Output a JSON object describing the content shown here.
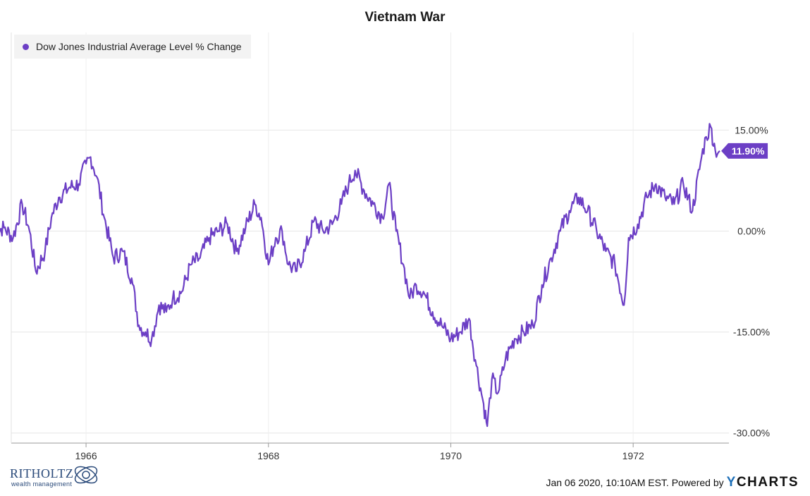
{
  "chart_data": {
    "type": "line",
    "title": "Vietnam War",
    "series": [
      {
        "name": "Dow Jones Industrial Average Level % Change",
        "color": "#6c3fc5",
        "x": [
          1965.0,
          1965.1,
          1965.2,
          1965.3,
          1965.38,
          1965.45,
          1965.55,
          1965.62,
          1965.7,
          1965.82,
          1965.92,
          1966.0,
          1966.05,
          1966.12,
          1966.2,
          1966.3,
          1966.4,
          1966.5,
          1966.58,
          1966.65,
          1966.72,
          1966.8,
          1966.88,
          1966.95,
          1967.05,
          1967.15,
          1967.25,
          1967.35,
          1967.45,
          1967.55,
          1967.65,
          1967.75,
          1967.85,
          1967.92,
          1968.0,
          1968.08,
          1968.15,
          1968.22,
          1968.3,
          1968.4,
          1968.5,
          1968.6,
          1968.7,
          1968.8,
          1968.88,
          1968.95,
          1969.05,
          1969.15,
          1969.25,
          1969.32,
          1969.4,
          1969.48,
          1969.55,
          1969.62,
          1969.7,
          1969.8,
          1969.9,
          1970.0,
          1970.1,
          1970.2,
          1970.28,
          1970.35,
          1970.4,
          1970.45,
          1970.52,
          1970.6,
          1970.7,
          1970.8,
          1970.9,
          1971.0,
          1971.1,
          1971.2,
          1971.3,
          1971.4,
          1971.5,
          1971.6,
          1971.7,
          1971.8,
          1971.9,
          1971.95,
          1972.05,
          1972.15,
          1972.25,
          1972.35,
          1972.45,
          1972.55,
          1972.65,
          1972.75,
          1972.8,
          1972.85,
          1972.9,
          1972.95
        ],
        "values": [
          0.0,
          0.5,
          -1.0,
          4.0,
          0.0,
          -6.0,
          -3.0,
          2.0,
          5.0,
          6.5,
          7.0,
          10.0,
          11.0,
          8.0,
          2.0,
          -4.0,
          -3.0,
          -7.0,
          -14.0,
          -15.0,
          -16.0,
          -11.0,
          -12.0,
          -10.0,
          -9.0,
          -5.0,
          -4.0,
          -1.0,
          0.0,
          1.0,
          -3.0,
          0.5,
          4.0,
          2.0,
          -5.0,
          -1.0,
          0.0,
          -5.0,
          -6.0,
          -3.0,
          1.5,
          0.0,
          1.0,
          4.0,
          7.0,
          9.0,
          6.0,
          4.0,
          2.0,
          7.0,
          0.0,
          -5.0,
          -10.0,
          -8.0,
          -9.0,
          -12.0,
          -14.0,
          -16.0,
          -15.0,
          -13.0,
          -20.0,
          -25.0,
          -29.0,
          -22.0,
          -24.0,
          -19.0,
          -16.0,
          -15.0,
          -14.0,
          -8.0,
          -4.0,
          0.0,
          3.0,
          5.0,
          3.0,
          0.0,
          -3.0,
          -5.0,
          -11.0,
          -1.0,
          1.0,
          5.0,
          7.0,
          5.0,
          4.0,
          7.0,
          3.0,
          11.0,
          14.0,
          15.5,
          12.0,
          11.9
        ]
      }
    ],
    "y_tick_labels": [
      "15.00%",
      "0.00%",
      "-15.00%",
      "-30.00%"
    ],
    "y_tick_values": [
      15,
      0,
      -15,
      -30
    ],
    "x_tick_labels": [
      "1966",
      "1968",
      "1970",
      "1972"
    ],
    "x_tick_values": [
      1966,
      1968,
      1970,
      1972
    ],
    "xlim": [
      1965.18,
      1973.05
    ],
    "ylim": [
      -31.5,
      29.5
    ],
    "last_value_label": "11.90%",
    "grid": true,
    "legend_position": "top-left"
  },
  "footer": {
    "timestamp": "Jan 06 2020, 10:10AM EST. Powered by",
    "brand_y": "Y",
    "brand_rest": "CHARTS"
  },
  "logo": {
    "name": "RITHOLTZ",
    "tagline": "wealth management"
  }
}
